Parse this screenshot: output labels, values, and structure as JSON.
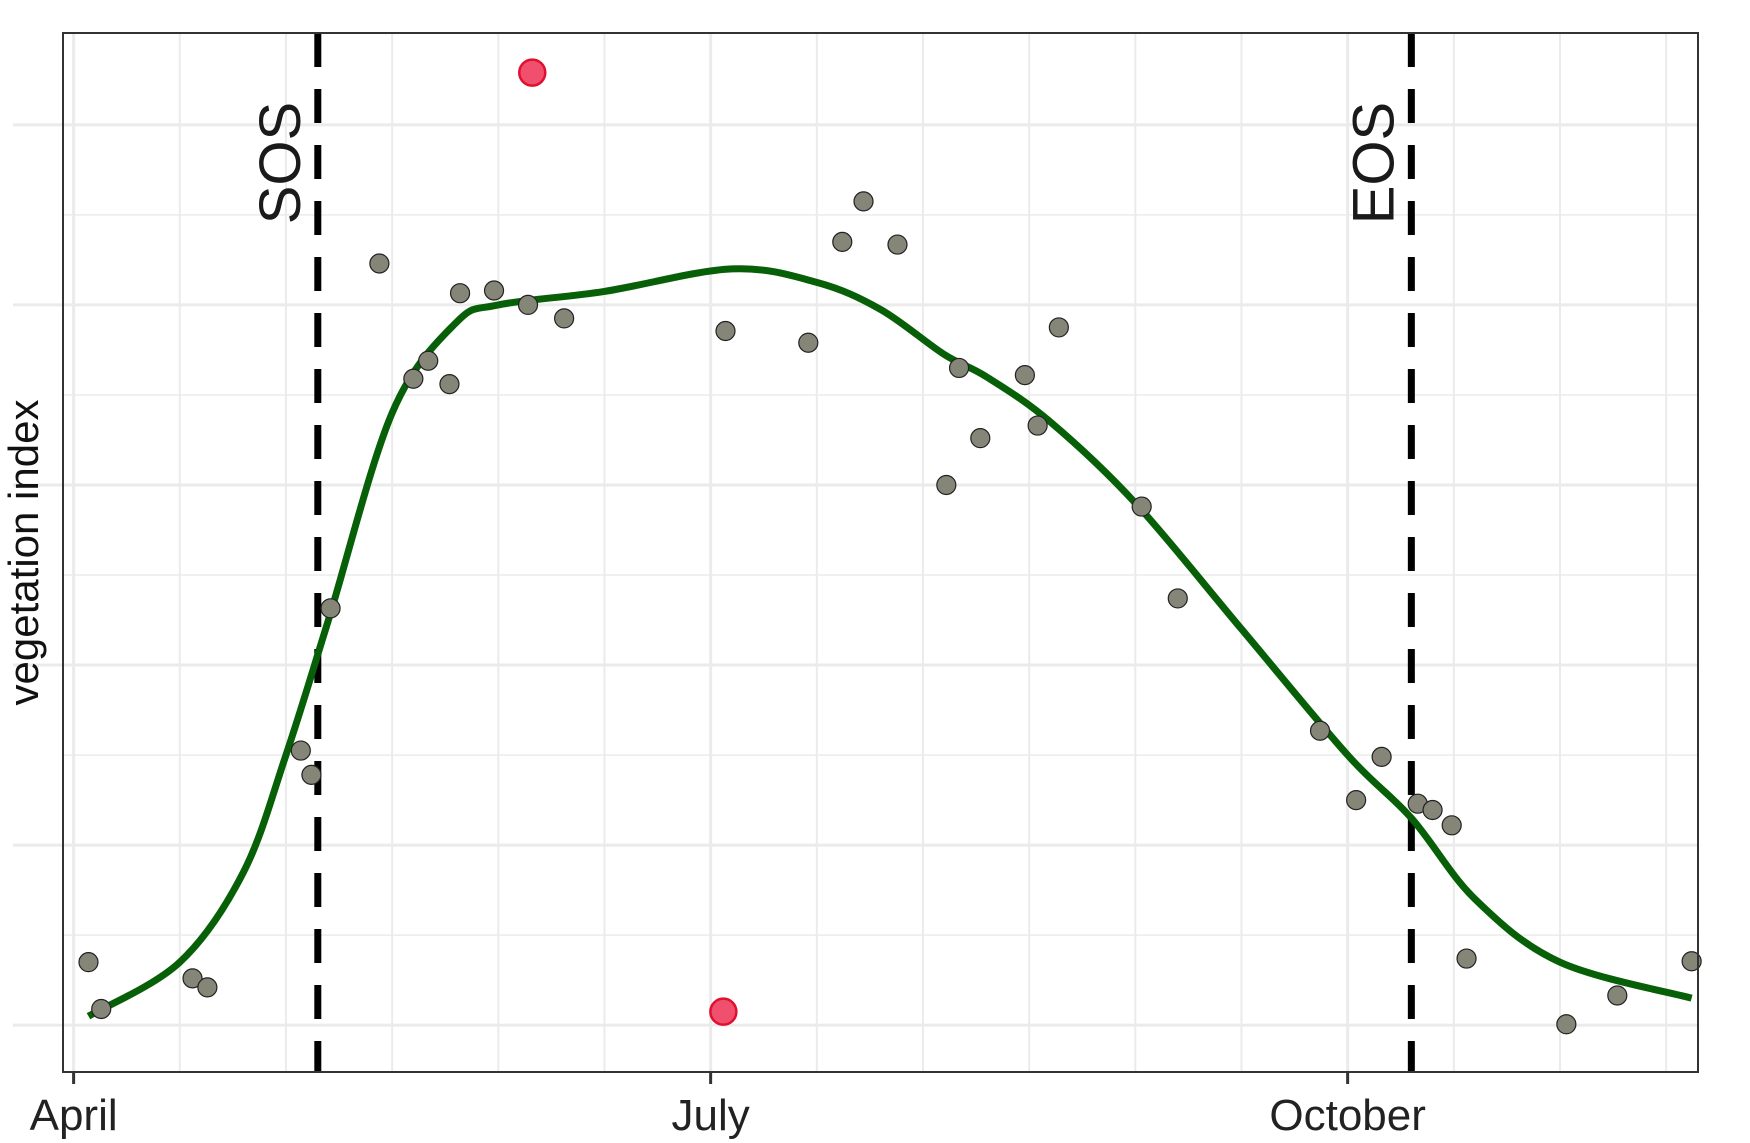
{
  "chart_data": {
    "type": "scatter",
    "ylabel": "vegetation index",
    "xlabel": "",
    "x_ticks": [
      "April",
      "July",
      "October"
    ],
    "x_tick_positions_month": [
      4,
      7,
      10
    ],
    "x_range_month": [
      3.95,
      11.65
    ],
    "y_range": [
      -0.052,
      1.102
    ],
    "y_gridlines": [
      0.0,
      0.2,
      0.4,
      0.6,
      0.8,
      1.0
    ],
    "y_tick_labels_visible": false,
    "grid": true,
    "colors": {
      "points": "#858578",
      "outliers": "#f0506e",
      "outlier_edge": "#e0102f",
      "fit_line": "#075f07",
      "markers": "#000000",
      "grid": "#ebebeb",
      "panel_border": "#333333"
    },
    "vertical_markers": [
      {
        "label": "SOS",
        "x": 5.15
      },
      {
        "label": "EOS",
        "x": 10.3
      }
    ],
    "series": [
      {
        "values": [
          [
            4.07,
            0.07
          ],
          [
            4.13,
            0.018
          ],
          [
            4.56,
            0.052
          ],
          [
            4.63,
            0.042
          ],
          [
            5.07,
            0.305
          ],
          [
            5.12,
            0.278
          ],
          [
            5.21,
            0.463
          ],
          [
            5.44,
            0.846
          ],
          [
            5.6,
            0.718
          ],
          [
            5.67,
            0.738
          ],
          [
            5.77,
            0.712
          ],
          [
            5.82,
            0.813
          ],
          [
            5.98,
            0.816
          ],
          [
            6.14,
            0.8
          ],
          [
            6.31,
            0.785
          ],
          [
            7.07,
            0.771
          ],
          [
            7.46,
            0.758
          ],
          [
            7.62,
            0.87
          ],
          [
            7.72,
            0.915
          ],
          [
            7.88,
            0.867
          ],
          [
            8.11,
            0.6
          ],
          [
            8.17,
            0.73
          ],
          [
            8.27,
            0.652
          ],
          [
            8.48,
            0.722
          ],
          [
            8.54,
            0.666
          ],
          [
            8.64,
            0.775
          ],
          [
            9.03,
            0.576
          ],
          [
            9.2,
            0.474
          ],
          [
            9.87,
            0.327
          ],
          [
            10.04,
            0.25
          ],
          [
            10.16,
            0.298
          ],
          [
            10.33,
            0.246
          ],
          [
            10.4,
            0.239
          ],
          [
            10.49,
            0.222
          ],
          [
            10.56,
            0.074
          ],
          [
            11.03,
            0.001
          ],
          [
            11.27,
            0.033
          ],
          [
            11.62,
            0.071
          ]
        ]
      },
      {
        "values": [
          [
            6.16,
            1.058
          ],
          [
            7.06,
            0.015
          ]
        ]
      }
    ],
    "fit_curve": [
      [
        4.07,
        0.01
      ],
      [
        4.5,
        0.07
      ],
      [
        4.8,
        0.17
      ],
      [
        5.0,
        0.3
      ],
      [
        5.2,
        0.45
      ],
      [
        5.5,
        0.68
      ],
      [
        5.8,
        0.78
      ],
      [
        6.0,
        0.8
      ],
      [
        6.5,
        0.815
      ],
      [
        7.1,
        0.84
      ],
      [
        7.5,
        0.825
      ],
      [
        7.8,
        0.795
      ],
      [
        8.1,
        0.745
      ],
      [
        8.3,
        0.72
      ],
      [
        8.6,
        0.67
      ],
      [
        9.0,
        0.58
      ],
      [
        9.5,
        0.44
      ],
      [
        10.0,
        0.3
      ],
      [
        10.3,
        0.23
      ],
      [
        10.6,
        0.14
      ],
      [
        11.0,
        0.07
      ],
      [
        11.62,
        0.03
      ]
    ]
  }
}
